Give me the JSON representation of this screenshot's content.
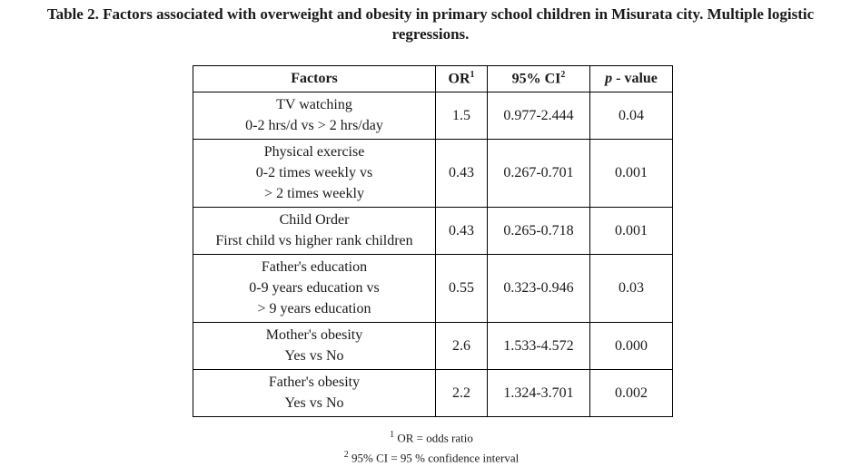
{
  "caption": {
    "line1": "Table 2. Factors associated with overweight and obesity in primary school children in Misurata city. Multiple logistic",
    "line2": "regressions."
  },
  "table": {
    "headers": {
      "factors": "Factors",
      "or": "OR",
      "or_sup": "1",
      "ci": "95% CI",
      "ci_sup": "2",
      "p_letter": "p",
      "p_rest": " - value"
    },
    "rows": [
      {
        "factor": [
          "TV watching",
          "0-2 hrs/d vs > 2 hrs/day"
        ],
        "or": "1.5",
        "ci": "0.977-2.444",
        "p": "0.04"
      },
      {
        "factor": [
          "Physical exercise",
          "0-2 times weekly vs",
          "> 2 times weekly"
        ],
        "or": "0.43",
        "ci": "0.267-0.701",
        "p": "0.001"
      },
      {
        "factor": [
          "Child Order",
          "First child vs higher rank children"
        ],
        "or": "0.43",
        "ci": "0.265-0.718",
        "p": "0.001"
      },
      {
        "factor": [
          "Father's education",
          "0-9 years education vs",
          "> 9 years education"
        ],
        "or": "0.55",
        "ci": "0.323-0.946",
        "p": "0.03"
      },
      {
        "factor": [
          "Mother's obesity",
          "Yes vs No"
        ],
        "or": "2.6",
        "ci": "1.533-4.572",
        "p": "0.000"
      },
      {
        "factor": [
          "Father's obesity",
          "Yes vs No"
        ],
        "or": "2.2",
        "ci": "1.324-3.701",
        "p": "0.002"
      }
    ]
  },
  "footnotes": [
    {
      "sup": "1",
      "text": " OR = odds ratio"
    },
    {
      "sup": "2",
      "text": " 95% CI = 95 % confidence interval"
    }
  ]
}
